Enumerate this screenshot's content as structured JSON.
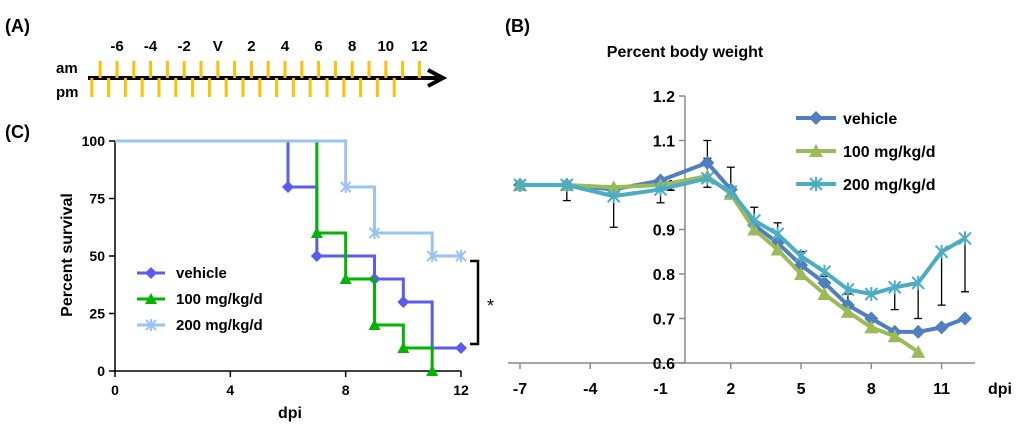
{
  "panel_labels": {
    "a": "(A)",
    "b": "(B)",
    "c": "(C)"
  },
  "colors": {
    "dosing_tick": "#FFC000",
    "vehicle_km": "#5B5BF0",
    "dose100_km": "#00B400",
    "dose200_km": "#99C3F2",
    "vehicle_bw": "#4F7FC1",
    "dose100_bw": "#9BBB59",
    "dose200_bw": "#4BACC6",
    "axis": "#000000"
  },
  "schedule": {
    "am_label": "am",
    "pm_label": "pm",
    "day_labels": [
      "-6",
      "-4",
      "-2",
      "V",
      "2",
      "4",
      "6",
      "8",
      "10",
      "12"
    ],
    "am_days": [
      -7,
      -6,
      -5,
      -4,
      -3,
      -2,
      -1,
      0,
      1,
      2,
      3,
      4,
      5,
      6,
      7,
      8,
      9,
      10,
      11,
      12
    ],
    "pm_days": [
      -7.5,
      -6.5,
      -5.5,
      -4.5,
      -3.5,
      -2.5,
      -1.5,
      -0.5,
      0.5,
      1.5,
      2.5,
      3.5,
      4.5,
      5.5,
      6.5,
      7.5,
      8.5,
      9.5,
      10.5
    ]
  },
  "chart_data": [
    {
      "type": "line",
      "title": "",
      "subtype": "kaplan-meier step",
      "xlabel": "dpi",
      "ylabel": "Percent survival",
      "xlim": [
        0,
        12
      ],
      "ylim": [
        0,
        100
      ],
      "xticks": [
        "0",
        "4",
        "8",
        "12"
      ],
      "yticks": [
        "0",
        "25",
        "50",
        "75",
        "100"
      ],
      "legend_position": "lower-left",
      "significance": "*",
      "series": [
        {
          "name": "vehicle",
          "color_key": "vehicle_km",
          "steps": [
            [
              0,
              100
            ],
            [
              6,
              80
            ],
            [
              7,
              50
            ],
            [
              9,
              40
            ],
            [
              10,
              30
            ],
            [
              11,
              10
            ],
            [
              12,
              10
            ]
          ],
          "markers": [
            [
              6,
              80
            ],
            [
              7,
              50
            ],
            [
              9,
              40
            ],
            [
              10,
              30
            ],
            [
              12,
              10
            ]
          ]
        },
        {
          "name": "100 mg/kg/d",
          "color_key": "dose100_km",
          "steps": [
            [
              0,
              100
            ],
            [
              7,
              60
            ],
            [
              8,
              40
            ],
            [
              9,
              20
            ],
            [
              10,
              10
            ],
            [
              11,
              0
            ]
          ],
          "markers": [
            [
              7,
              60
            ],
            [
              8,
              40
            ],
            [
              9,
              20
            ],
            [
              10,
              10
            ],
            [
              11,
              0
            ]
          ]
        },
        {
          "name": "200 mg/kg/d",
          "color_key": "dose200_km",
          "steps": [
            [
              0,
              100
            ],
            [
              8,
              80
            ],
            [
              9,
              60
            ],
            [
              11,
              50
            ],
            [
              12,
              50
            ]
          ],
          "markers": [
            [
              8,
              80
            ],
            [
              9,
              60
            ],
            [
              11,
              50
            ],
            [
              12,
              50
            ]
          ]
        }
      ]
    },
    {
      "type": "line",
      "title": "Percent body weight",
      "xlabel": "dpi",
      "ylabel": "",
      "xlim": [
        -7,
        12
      ],
      "ylim": [
        0.6,
        1.2
      ],
      "xticks": [
        "-7",
        "-4",
        "-1",
        "2",
        "5",
        "8",
        "11"
      ],
      "yticks": [
        "0.6",
        "0.7",
        "0.8",
        "0.9",
        "1",
        "1.1",
        "1.2"
      ],
      "legend_position": "top-right",
      "series": [
        {
          "name": "vehicle",
          "color_key": "vehicle_bw",
          "marker": "diamond",
          "x": [
            -7,
            -5,
            -3,
            -1,
            1,
            2,
            3,
            4,
            5,
            6,
            7,
            8,
            9,
            10,
            11,
            12
          ],
          "y": [
            1.0,
            1.0,
            0.99,
            1.01,
            1.05,
            0.99,
            0.91,
            0.87,
            0.82,
            0.78,
            0.73,
            0.7,
            0.67,
            0.67,
            0.68,
            0.7
          ],
          "err": [
            0,
            0,
            0,
            0,
            0.01,
            0,
            0,
            0,
            0,
            0,
            0,
            0,
            0,
            0,
            0,
            0
          ]
        },
        {
          "name": "100 mg/kg/d",
          "color_key": "dose100_bw",
          "marker": "triangle",
          "x": [
            -7,
            -5,
            -3,
            -1,
            1,
            2,
            3,
            4,
            5,
            6,
            7,
            8,
            9,
            10
          ],
          "y": [
            1.0,
            1.0,
            0.995,
            1.0,
            1.02,
            0.98,
            0.9,
            0.855,
            0.8,
            0.755,
            0.715,
            0.68,
            0.66,
            0.625
          ],
          "err": [
            0,
            0,
            0,
            0,
            0.08,
            0.06,
            0.05,
            0.06,
            0.05,
            0.04,
            0.04,
            0.02,
            0.01,
            0
          ]
        },
        {
          "name": "200 mg/kg/d",
          "color_key": "dose200_bw",
          "marker": "asterisk",
          "x": [
            -7,
            -5,
            -3,
            -1,
            1,
            2,
            3,
            4,
            5,
            6,
            7,
            8,
            9,
            10,
            11,
            12
          ],
          "y": [
            1.0,
            1.0,
            0.975,
            0.99,
            1.015,
            0.985,
            0.92,
            0.89,
            0.84,
            0.805,
            0.765,
            0.755,
            0.77,
            0.78,
            0.85,
            0.88
          ],
          "err": [
            0,
            0.035,
            0.07,
            0.03,
            0.02,
            0.01,
            0.03,
            0.02,
            0.04,
            0.03,
            0.03,
            0,
            0.05,
            0.08,
            0.12,
            0.12
          ]
        }
      ]
    }
  ]
}
